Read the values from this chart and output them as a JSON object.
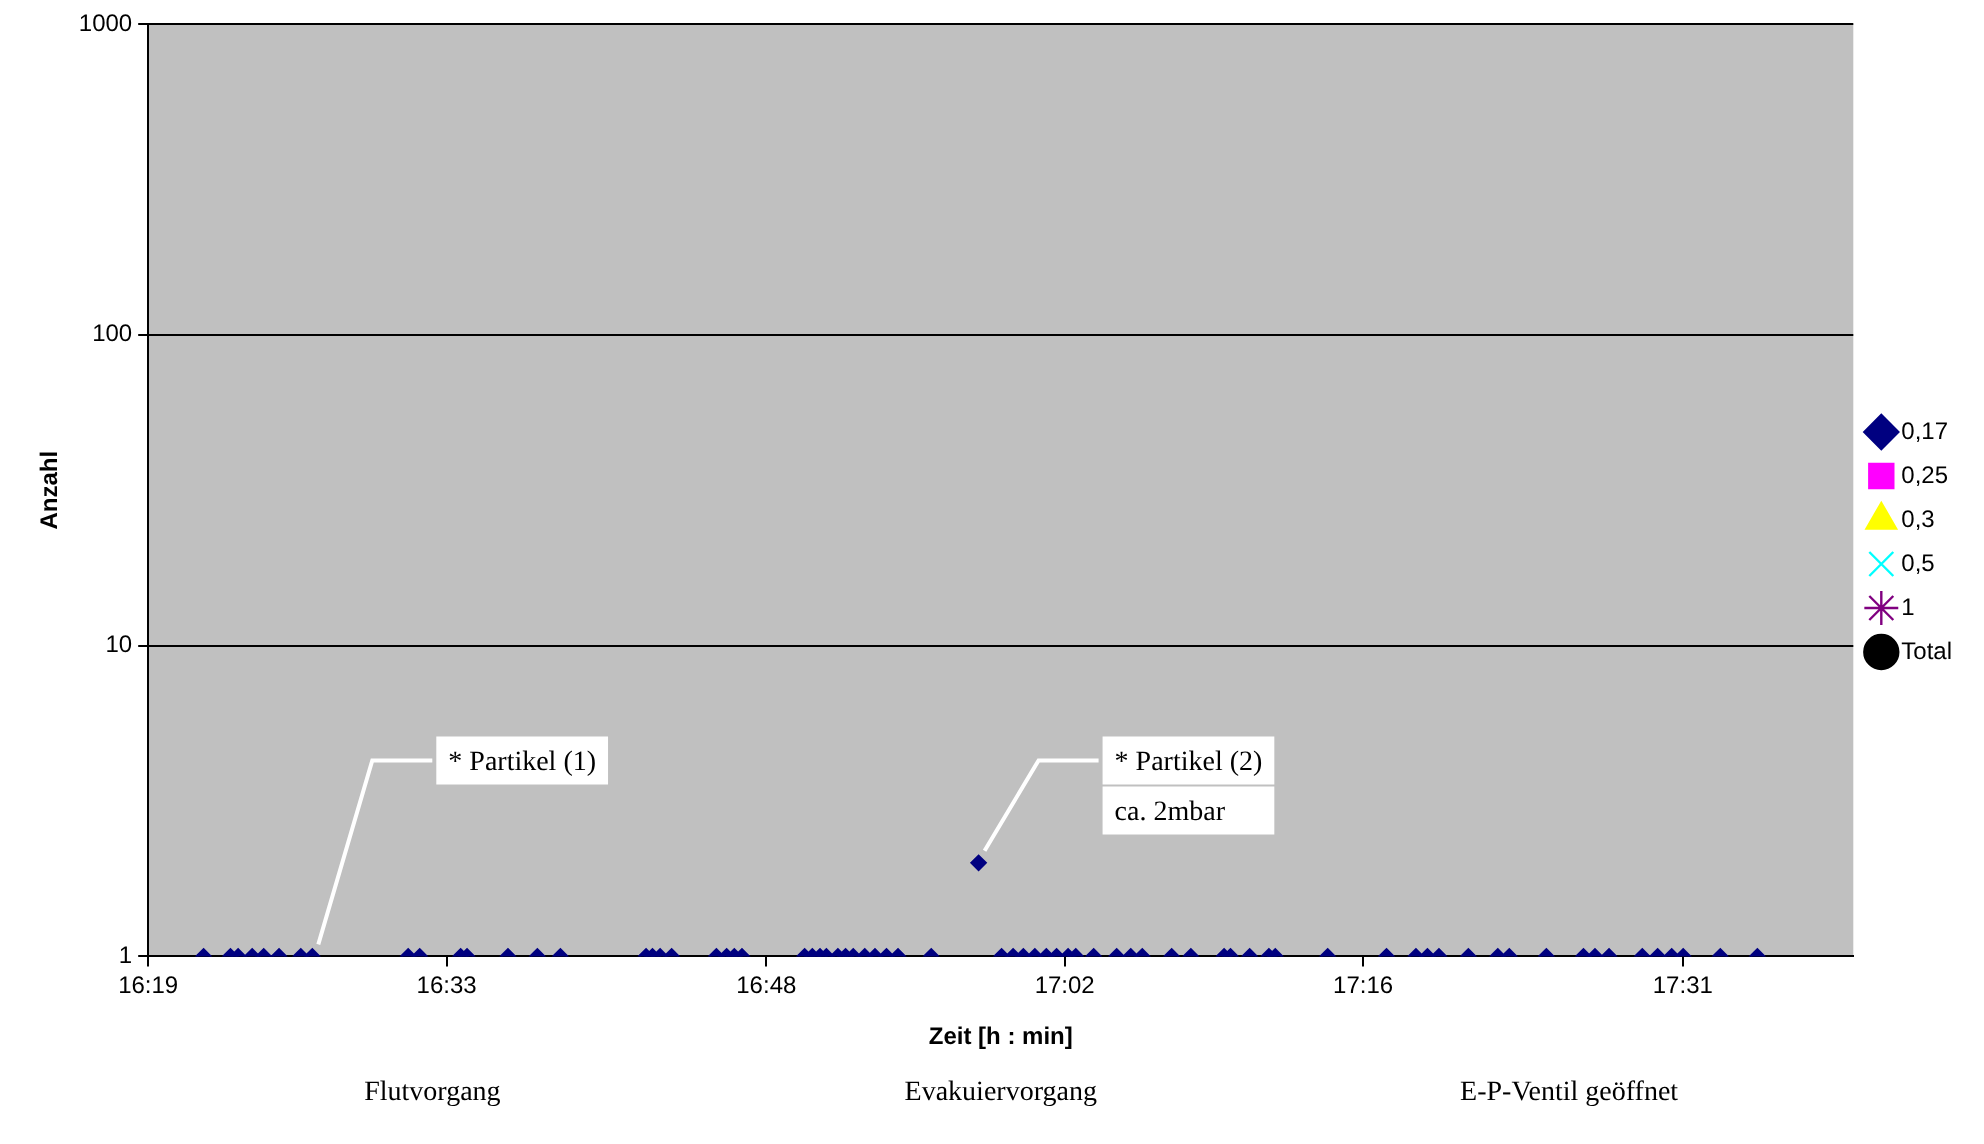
{
  "chart_data": {
    "type": "scatter",
    "xlabel": "Zeit [h : min]",
    "ylabel": "Anzahl",
    "log": "y",
    "grid": "y",
    "legend": "right",
    "xlim": [
      16.316667,
      17.65
    ],
    "ylim": [
      1,
      1000
    ],
    "yticks": [
      1,
      10,
      100,
      1000
    ],
    "xticks": [
      {
        "value": 16.316667,
        "label": "16:19"
      },
      {
        "value": 16.55,
        "label": "16:33"
      },
      {
        "value": 16.8,
        "label": "16:48"
      },
      {
        "value": 17.033333,
        "label": "17:02"
      },
      {
        "value": 17.266667,
        "label": "17:16"
      },
      {
        "value": 17.516667,
        "label": "17:31"
      }
    ],
    "series": [
      {
        "name": "0,17",
        "color": "#000080",
        "marker": "diamond",
        "x": [
          16.36,
          16.381,
          16.387,
          16.398,
          16.407,
          16.419,
          16.436,
          16.445,
          16.52,
          16.529,
          16.561,
          16.566,
          16.598,
          16.621,
          16.639,
          16.706,
          16.711,
          16.717,
          16.726,
          16.761,
          16.769,
          16.775,
          16.781,
          16.83,
          16.836,
          16.842,
          16.847,
          16.856,
          16.862,
          16.868,
          16.877,
          16.885,
          16.894,
          16.903,
          16.929,
          16.966,
          16.984,
          16.993,
          17.001,
          17.01,
          17.019,
          17.027,
          17.036,
          17.042,
          17.056,
          17.074,
          17.085,
          17.094,
          17.117,
          17.132,
          17.158,
          17.163,
          17.178,
          17.193,
          17.198,
          17.239,
          17.285,
          17.308,
          17.317,
          17.326,
          17.349,
          17.372,
          17.381,
          17.41,
          17.439,
          17.448,
          17.459,
          17.485,
          17.497,
          17.508,
          17.517,
          17.546,
          17.575
        ],
        "values": [
          1,
          1,
          1,
          1,
          1,
          1,
          1,
          1,
          1,
          1,
          1,
          1,
          1,
          1,
          1,
          1,
          1,
          1,
          1,
          1,
          1,
          1,
          1,
          1,
          1,
          1,
          1,
          1,
          1,
          1,
          1,
          1,
          1,
          1,
          1,
          2,
          1,
          1,
          1,
          1,
          1,
          1,
          1,
          1,
          1,
          1,
          1,
          1,
          1,
          1,
          1,
          1,
          1,
          1,
          1,
          1,
          1,
          1,
          1,
          1,
          1,
          1,
          1,
          1,
          1,
          1,
          1,
          1,
          1,
          1,
          1,
          1,
          1
        ]
      },
      {
        "name": "0,25",
        "color": "#ff00ff",
        "marker": "square"
      },
      {
        "name": "0,3",
        "color": "#ffff00",
        "marker": "triangle"
      },
      {
        "name": "0,5",
        "color": "#00ffff",
        "marker": "cross"
      },
      {
        "name": "1",
        "color": "#800080",
        "marker": "star"
      },
      {
        "name": "Total",
        "color": "#000000",
        "marker": "circle"
      }
    ],
    "annotations": [
      {
        "text": "* Partikel (1)",
        "x": 16.445,
        "y": 1
      },
      {
        "text": "* Partikel (2)\nca. 2mbar",
        "x": 16.966,
        "y": 2
      },
      "Flutvorgang",
      "Evakuiervorgang",
      "E-P-Ventil geöffnet"
    ]
  }
}
